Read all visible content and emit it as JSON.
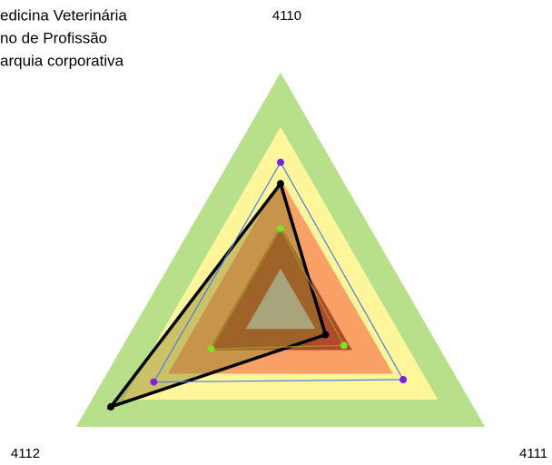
{
  "chart_data": {
    "type": "radar",
    "axes": [
      "4110",
      "4111",
      "4112"
    ],
    "rlim": [
      0,
      100
    ],
    "bands": [
      {
        "value": 100,
        "color": "#b8df8a"
      },
      {
        "value": 77,
        "color": "#fff59a"
      },
      {
        "value": 55,
        "color": "#f9a066"
      },
      {
        "value": 35,
        "color": "#b04a2c"
      },
      {
        "value": 17,
        "color": "#c0c0c0"
      }
    ],
    "series": [
      {
        "name": "edicina Veterinária",
        "color": "#000000",
        "marker_color": "#000000",
        "values": [
          53,
          22,
          83
        ]
      },
      {
        "name": "no de Profissão",
        "color": "#4a7fe0",
        "marker_color": "#7f1fe0",
        "values": [
          62,
          60,
          62
        ]
      },
      {
        "name": "arquia corporativa",
        "color": "#9a9a20",
        "marker_color": "#80e020",
        "values": [
          34,
          31,
          34
        ]
      }
    ]
  }
}
